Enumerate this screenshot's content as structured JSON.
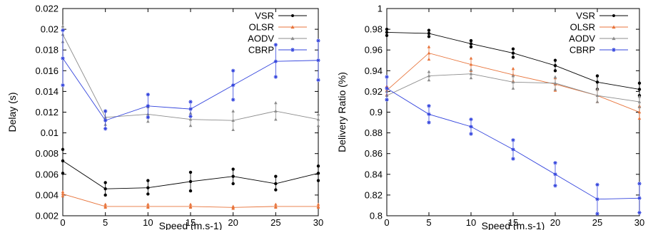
{
  "chart_data": [
    {
      "type": "line",
      "xlabel": "Speed (m.s-1)",
      "ylabel": "Delay (s)",
      "xlim": [
        0,
        30
      ],
      "ylim": [
        0.002,
        0.022
      ],
      "x_ticks": [
        0,
        5,
        10,
        15,
        20,
        25,
        30
      ],
      "y_ticks": [
        0.002,
        0.004,
        0.006,
        0.008,
        0.01,
        0.012,
        0.014,
        0.016,
        0.018,
        0.02,
        0.022
      ],
      "y_tick_labels": [
        "0.002",
        "0.004",
        "0.006",
        "0.008",
        "0.01",
        "0.012",
        "0.014",
        "0.016",
        "0.018",
        "0.02",
        "0.022"
      ],
      "grid": false,
      "legend_position": "top-right",
      "x": [
        0,
        5,
        10,
        15,
        20,
        25,
        30
      ],
      "series": [
        {
          "name": "VSR",
          "color": "#000000",
          "marker": "dot",
          "values": [
            0.0073,
            0.0046,
            0.0047,
            0.0053,
            0.0058,
            0.0051,
            0.0061
          ],
          "samples": [
            [
              0.0084,
              0.0061
            ],
            [
              0.0052,
              0.004
            ],
            [
              0.0054,
              0.0041
            ],
            [
              0.0062,
              0.0044
            ],
            [
              0.0065,
              0.0051
            ],
            [
              0.0058,
              0.0045
            ],
            [
              0.0068,
              0.0054
            ]
          ]
        },
        {
          "name": "OLSR",
          "color": "#e8743b",
          "marker": "triangle",
          "values": [
            0.0041,
            0.0029,
            0.0029,
            0.0029,
            0.0028,
            0.0029,
            0.0029
          ],
          "samples": [
            [
              0.0043,
              0.0039
            ],
            [
              0.0031,
              0.0028
            ],
            [
              0.0031,
              0.0028
            ],
            [
              0.0031,
              0.0028
            ],
            [
              0.0029,
              0.0027
            ],
            [
              0.0031,
              0.0028
            ],
            [
              0.0031,
              0.0028
            ]
          ]
        },
        {
          "name": "AODV",
          "color": "#8c8c8c",
          "marker": "triangle",
          "values": [
            0.0195,
            0.0115,
            0.0118,
            0.0113,
            0.0112,
            0.0121,
            0.0113
          ],
          "samples": [
            [
              0.0203,
              0.0188
            ],
            [
              0.0121,
              0.0108
            ],
            [
              0.0125,
              0.0111
            ],
            [
              0.0119,
              0.0107
            ],
            [
              0.0121,
              0.0103
            ],
            [
              0.0129,
              0.0113
            ],
            [
              0.0118,
              0.0107
            ]
          ]
        },
        {
          "name": "CBRP",
          "color": "#3344dd",
          "marker": "star",
          "values": [
            0.0172,
            0.0112,
            0.0126,
            0.0123,
            0.0146,
            0.0169,
            0.017
          ],
          "samples": [
            [
              0.0199,
              0.0146
            ],
            [
              0.0121,
              0.0104
            ],
            [
              0.0137,
              0.0115
            ],
            [
              0.013,
              0.0116
            ],
            [
              0.016,
              0.0132
            ],
            [
              0.0185,
              0.0154
            ],
            [
              0.0189,
              0.0151
            ]
          ]
        }
      ]
    },
    {
      "type": "line",
      "xlabel": "Speed (m.s-1)",
      "ylabel": "Delivery Ratio (%)",
      "xlim": [
        0,
        30
      ],
      "ylim": [
        0.8,
        1.0
      ],
      "x_ticks": [
        0,
        5,
        10,
        15,
        20,
        25,
        30
      ],
      "y_ticks": [
        0.8,
        0.82,
        0.84,
        0.86,
        0.88,
        0.9,
        0.92,
        0.94,
        0.96,
        0.98,
        1.0
      ],
      "y_tick_labels": [
        "0.8",
        "0.82",
        "0.84",
        "0.86",
        "0.88",
        "0.9",
        "0.92",
        "0.94",
        "0.96",
        "0.98",
        "1"
      ],
      "grid": false,
      "legend_position": "top-right",
      "x": [
        0,
        5,
        10,
        15,
        20,
        25,
        30
      ],
      "series": [
        {
          "name": "VSR",
          "color": "#000000",
          "marker": "dot",
          "values": [
            0.977,
            0.976,
            0.966,
            0.957,
            0.945,
            0.929,
            0.922
          ],
          "samples": [
            [
              0.98,
              0.974
            ],
            [
              0.979,
              0.973
            ],
            [
              0.969,
              0.963
            ],
            [
              0.961,
              0.953
            ],
            [
              0.95,
              0.94
            ],
            [
              0.935,
              0.922
            ],
            [
              0.928,
              0.916
            ]
          ]
        },
        {
          "name": "OLSR",
          "color": "#e8743b",
          "marker": "triangle",
          "values": [
            0.921,
            0.957,
            0.946,
            0.936,
            0.927,
            0.916,
            0.9
          ],
          "samples": [
            [
              0.925,
              0.917
            ],
            [
              0.963,
              0.951
            ],
            [
              0.952,
              0.94
            ],
            [
              0.942,
              0.93
            ],
            [
              0.933,
              0.921
            ],
            [
              0.922,
              0.91
            ],
            [
              0.906,
              0.894
            ]
          ]
        },
        {
          "name": "AODV",
          "color": "#8c8c8c",
          "marker": "triangle",
          "values": [
            0.916,
            0.935,
            0.937,
            0.929,
            0.928,
            0.916,
            0.91
          ],
          "samples": [
            [
              0.92,
              0.912
            ],
            [
              0.939,
              0.931
            ],
            [
              0.941,
              0.933
            ],
            [
              0.935,
              0.923
            ],
            [
              0.934,
              0.922
            ],
            [
              0.922,
              0.91
            ],
            [
              0.915,
              0.905
            ]
          ]
        },
        {
          "name": "CBRP",
          "color": "#3344dd",
          "marker": "star",
          "values": [
            0.923,
            0.898,
            0.886,
            0.864,
            0.84,
            0.816,
            0.817
          ],
          "samples": [
            [
              0.934,
              0.912
            ],
            [
              0.906,
              0.89
            ],
            [
              0.893,
              0.879
            ],
            [
              0.873,
              0.855
            ],
            [
              0.851,
              0.829
            ],
            [
              0.83,
              0.802
            ],
            [
              0.831,
              0.803
            ]
          ]
        }
      ]
    }
  ]
}
